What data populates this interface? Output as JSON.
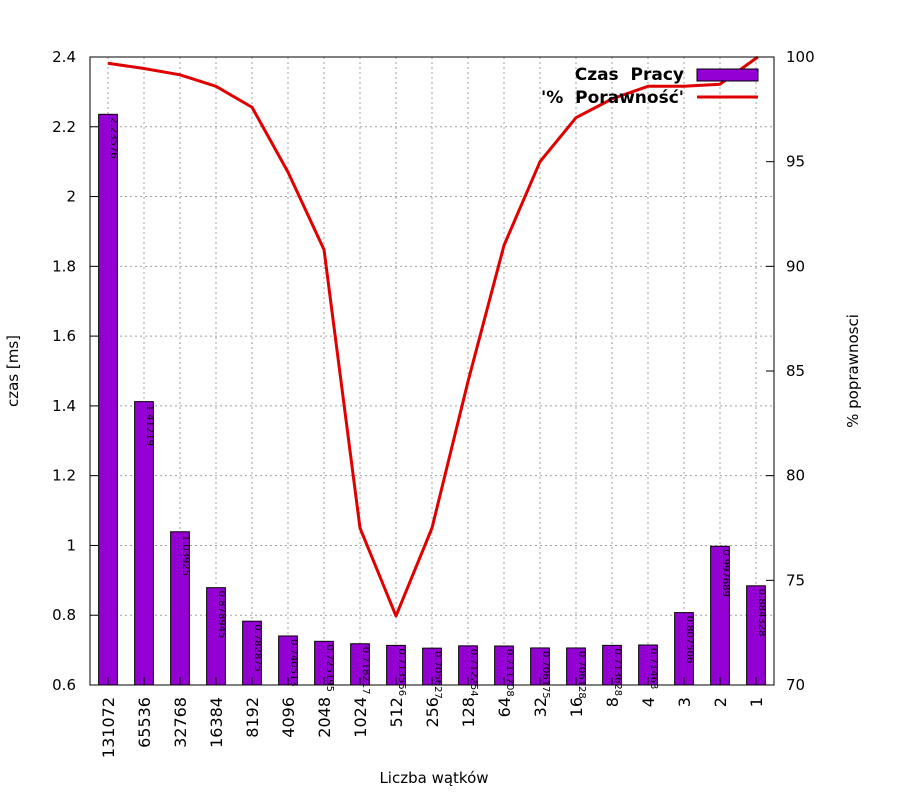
{
  "chart_data": {
    "type": "bar",
    "title": "",
    "xlabel": "Liczba wątków",
    "ylabel": "czas [ms]",
    "y2label": "% poprawnosci",
    "ylim": [
      0.6,
      2.4
    ],
    "y2lim": [
      70,
      100
    ],
    "yticks": [
      "0.6",
      "0.8",
      "1",
      "1.2",
      "1.4",
      "1.6",
      "1.8",
      "2",
      "2.2",
      "2.4"
    ],
    "y2ticks": [
      "70",
      "75",
      "80",
      "85",
      "90",
      "95",
      "100"
    ],
    "grid": true,
    "legend_position": "top-right",
    "categories": [
      "131072",
      "65536",
      "32768",
      "16384",
      "8192",
      "4096",
      "2048",
      "1024",
      "512",
      "256",
      "128",
      "64",
      "32",
      "16",
      "8",
      "4",
      "3",
      "2",
      "1"
    ],
    "series": [
      {
        "name": "Czas  Pracy",
        "axis": "left",
        "type": "bar",
        "color": "#9400d3",
        "values": [
          2.23576,
          1.41219,
          1.03925,
          0.878945,
          0.782875,
          0.740513,
          0.725195,
          0.718217,
          0.713556,
          0.705627,
          0.712254,
          0.711708,
          0.706175,
          0.706128,
          0.713628,
          0.71463,
          0.807506,
          0.997689,
          0.884328
        ],
        "labels": [
          "2.23576",
          "1.41219",
          "1.03925",
          "0.878945",
          "0.782875",
          "0.740513",
          "0.725195",
          "0.718217",
          "0.713556",
          "0.705627",
          "0.712254",
          "0.711708",
          "0.706175",
          "0.706128",
          "0.713628",
          "0.71463",
          "0.807506",
          "0.997689",
          "0.884328"
        ]
      },
      {
        "name": "'%  Porawność'",
        "axis": "right",
        "type": "line",
        "color": "#e00000",
        "values": [
          99.7,
          99.45,
          99.15,
          98.6,
          97.6,
          94.5,
          90.8,
          77.5,
          73.3,
          77.5,
          84.5,
          91.0,
          95.0,
          97.1,
          98.0,
          98.6,
          98.6,
          98.7,
          100.0
        ]
      }
    ]
  }
}
